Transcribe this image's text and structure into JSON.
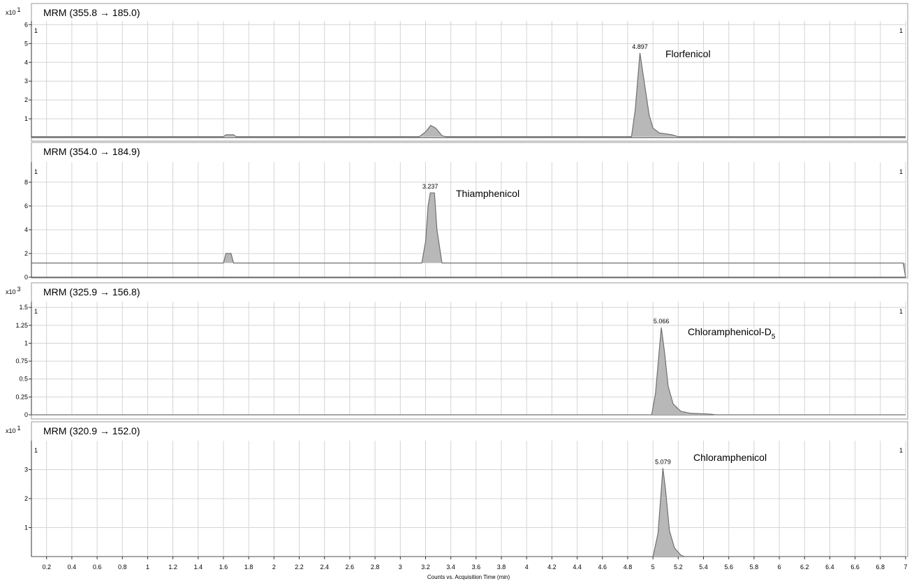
{
  "chart_data": [
    {
      "type": "line",
      "title": "MRM (355.8 → 185.0)",
      "y_scale": "x10",
      "y_scale_exp": "1",
      "corner_labels": [
        "1",
        "1"
      ],
      "compound": "Florfenicol",
      "peak_rt": 4.897,
      "color": "#707070",
      "fill": "#b8b8b8",
      "grid": true,
      "xlim": [
        0.08,
        7
      ],
      "xticks": [
        0.2,
        0.4,
        0.6,
        0.8,
        1,
        1.2,
        1.4,
        1.6,
        1.8,
        2,
        2.2,
        2.4,
        2.6,
        2.8,
        3,
        3.2,
        3.4,
        3.6,
        3.8,
        4,
        4.2,
        4.4,
        4.6,
        4.8,
        5,
        5.2,
        5.4,
        5.6,
        5.8,
        6,
        6.2,
        6.4,
        6.6,
        6.8,
        7
      ],
      "ylim": [
        0,
        6.2
      ],
      "yticks": [
        1,
        2,
        3,
        4,
        5,
        6
      ],
      "x": [
        0.08,
        1.6,
        1.62,
        1.68,
        1.7,
        3.15,
        3.2,
        3.241,
        3.28,
        3.33,
        3.36,
        4.83,
        4.86,
        4.897,
        4.93,
        4.97,
        5.0,
        5.05,
        5.15,
        5.2,
        7
      ],
      "values": [
        0.05,
        0.05,
        0.15,
        0.15,
        0.05,
        0.05,
        0.3,
        0.65,
        0.5,
        0.1,
        0.05,
        0.05,
        1.5,
        4.5,
        3.0,
        1.2,
        0.5,
        0.25,
        0.15,
        0.05,
        0.05
      ]
    },
    {
      "type": "line",
      "title": "MRM (354.0 → 184.9)",
      "corner_labels": [
        "1",
        "1"
      ],
      "compound": "Thiamphenicol",
      "peak_rt": 3.237,
      "color": "#707070",
      "fill": "#b8b8b8",
      "grid": true,
      "xlim": [
        0.08,
        7
      ],
      "xticks": [
        0.2,
        0.4,
        0.6,
        0.8,
        1,
        1.2,
        1.4,
        1.6,
        1.8,
        2,
        2.2,
        2.4,
        2.6,
        2.8,
        3,
        3.2,
        3.4,
        3.6,
        3.8,
        4,
        4.2,
        4.4,
        4.6,
        4.8,
        5,
        5.2,
        5.4,
        5.6,
        5.8,
        6,
        6.2,
        6.4,
        6.6,
        6.8,
        7
      ],
      "ylim": [
        0,
        9.7
      ],
      "yticks": [
        0,
        2,
        4,
        6,
        8
      ],
      "x": [
        0.08,
        1.6,
        1.62,
        1.66,
        1.68,
        3.17,
        3.2,
        3.22,
        3.237,
        3.27,
        3.29,
        3.33,
        6.98,
        7
      ],
      "values": [
        1.2,
        1.2,
        2,
        2,
        1.2,
        1.2,
        3,
        6,
        7.1,
        7.1,
        4,
        1.2,
        1.2,
        0
      ]
    },
    {
      "type": "line",
      "title": "MRM (325.9 → 156.8)",
      "y_scale": "x10",
      "y_scale_exp": "3",
      "corner_labels": [
        "1",
        "1"
      ],
      "compound": "Chloramphenicol-D",
      "compound_sub": "5",
      "peak_rt": 5.066,
      "color": "#707070",
      "fill": "#b8b8b8",
      "grid": true,
      "xlim": [
        0.08,
        7
      ],
      "xticks": [
        0.2,
        0.4,
        0.6,
        0.8,
        1,
        1.2,
        1.4,
        1.6,
        1.8,
        2,
        2.2,
        2.4,
        2.6,
        2.8,
        3,
        3.2,
        3.4,
        3.6,
        3.8,
        4,
        4.2,
        4.4,
        4.6,
        4.8,
        5,
        5.2,
        5.4,
        5.6,
        5.8,
        6,
        6.2,
        6.4,
        6.6,
        6.8,
        7
      ],
      "ylim": [
        0,
        1.58
      ],
      "yticks": [
        0,
        0.25,
        0.5,
        0.75,
        1,
        1.25,
        1.5
      ],
      "x": [
        0.08,
        4.99,
        5.02,
        5.05,
        5.066,
        5.09,
        5.12,
        5.16,
        5.22,
        5.3,
        5.45,
        5.5,
        7
      ],
      "values": [
        0,
        0,
        0.3,
        0.9,
        1.22,
        0.9,
        0.4,
        0.15,
        0.05,
        0.02,
        0.01,
        0,
        0
      ]
    },
    {
      "type": "line",
      "title": "MRM (320.9 → 152.0)",
      "y_scale": "x10",
      "y_scale_exp": "1",
      "corner_labels": [
        "1",
        "1"
      ],
      "compound": "Chloramphenicol",
      "peak_rt": 5.079,
      "color": "#707070",
      "fill": "#b8b8b8",
      "grid": true,
      "x_tick_labels": true,
      "xlabel": "Counts vs. Acquisition Time (min)",
      "xlim": [
        0.08,
        7
      ],
      "xticks": [
        0.2,
        0.4,
        0.6,
        0.8,
        1,
        1.2,
        1.4,
        1.6,
        1.8,
        2,
        2.2,
        2.4,
        2.6,
        2.8,
        3,
        3.2,
        3.4,
        3.6,
        3.8,
        4,
        4.2,
        4.4,
        4.6,
        4.8,
        5,
        5.2,
        5.4,
        5.6,
        5.8,
        6,
        6.2,
        6.4,
        6.6,
        6.8,
        7
      ],
      "ylim": [
        0,
        4
      ],
      "yticks": [
        1,
        2,
        3
      ],
      "x": [
        0.08,
        5.0,
        5.04,
        5.079,
        5.1,
        5.13,
        5.17,
        5.22,
        5.25,
        7
      ],
      "values": [
        0,
        0,
        0.8,
        3.05,
        2.3,
        0.9,
        0.3,
        0.05,
        0,
        0
      ]
    }
  ]
}
